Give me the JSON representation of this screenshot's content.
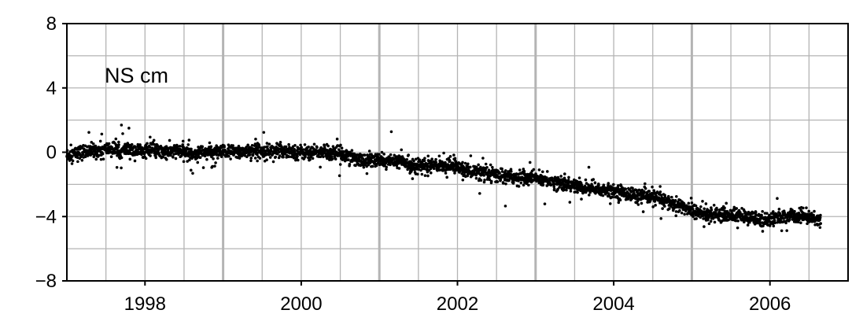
{
  "chart_data": {
    "type": "scatter",
    "title": "",
    "annotation": "NS cm",
    "xlabel": "",
    "ylabel": "",
    "xlim": [
      1997.0,
      2007.0
    ],
    "ylim": [
      -8,
      8
    ],
    "x_ticks": [
      1998,
      2000,
      2002,
      2004,
      2006
    ],
    "x_tick_labels": [
      "1998",
      "2000",
      "2002",
      "2004",
      "2006"
    ],
    "y_ticks": [
      8,
      4,
      0,
      -4,
      -8
    ],
    "y_tick_labels": [
      "8",
      "4",
      "0",
      "−4",
      "−8"
    ],
    "grid": true,
    "colors": {
      "points": "#000000",
      "grid": "#b4b4b4",
      "frame": "#000000"
    },
    "series": [
      {
        "values_description_omitted": false,
        "x": [
          1997.0,
          1997.1,
          1997.2,
          1997.3,
          1997.4,
          1997.5,
          1997.6,
          1997.7,
          1997.8,
          1997.9,
          1998.0,
          1998.1,
          1998.2,
          1998.3,
          1998.4,
          1998.5,
          1998.6,
          1998.7,
          1998.8,
          1998.9,
          1999.0,
          1999.1,
          1999.2,
          1999.3,
          1999.4,
          1999.5,
          1999.6,
          1999.7,
          1999.8,
          1999.9,
          2000.0,
          2000.1,
          2000.2,
          2000.3,
          2000.4,
          2000.5,
          2000.6,
          2000.7,
          2000.8,
          2000.9,
          2001.0,
          2001.1,
          2001.2,
          2001.3,
          2001.4,
          2001.5,
          2001.6,
          2001.7,
          2001.8,
          2001.9,
          2002.0,
          2002.1,
          2002.2,
          2002.3,
          2002.4,
          2002.5,
          2002.6,
          2002.7,
          2002.8,
          2002.9,
          2003.0,
          2003.1,
          2003.2,
          2003.3,
          2003.4,
          2003.5,
          2003.6,
          2003.7,
          2003.8,
          2003.9,
          2004.0,
          2004.1,
          2004.2,
          2004.3,
          2004.4,
          2004.5,
          2004.6,
          2004.7,
          2004.8,
          2004.9,
          2005.0,
          2005.1,
          2005.2,
          2005.3,
          2005.4,
          2005.5,
          2005.6,
          2005.7,
          2005.8,
          2005.9,
          2006.0,
          2006.1,
          2006.2,
          2006.3,
          2006.4,
          2006.5,
          2006.6
        ],
        "values": [
          -0.2,
          -0.1,
          0.0,
          0.1,
          0.1,
          0.2,
          0.2,
          0.1,
          0.1,
          0.1,
          0.1,
          0.1,
          0.0,
          0.0,
          0.1,
          0.0,
          -0.1,
          0.0,
          0.0,
          0.0,
          0.0,
          0.0,
          0.0,
          0.1,
          0.1,
          0.1,
          0.1,
          0.1,
          0.1,
          0.0,
          0.0,
          0.0,
          0.0,
          0.0,
          0.0,
          -0.1,
          -0.1,
          -0.4,
          -0.5,
          -0.5,
          -0.5,
          -0.6,
          -0.5,
          -0.6,
          -0.8,
          -0.8,
          -0.9,
          -0.8,
          -0.8,
          -0.8,
          -0.9,
          -1.1,
          -1.2,
          -1.3,
          -1.4,
          -1.4,
          -1.5,
          -1.5,
          -1.6,
          -1.6,
          -1.6,
          -1.7,
          -1.8,
          -1.9,
          -2.0,
          -2.1,
          -2.2,
          -2.3,
          -2.3,
          -2.4,
          -2.4,
          -2.5,
          -2.6,
          -2.7,
          -2.8,
          -2.8,
          -2.9,
          -3.1,
          -3.3,
          -3.4,
          -3.6,
          -3.8,
          -3.9,
          -3.8,
          -3.9,
          -3.9,
          -3.9,
          -4.1,
          -4.1,
          -4.2,
          -4.2,
          -4.1,
          -4.0,
          -4.0,
          -4.0,
          -4.0,
          -4.2
        ]
      }
    ]
  }
}
